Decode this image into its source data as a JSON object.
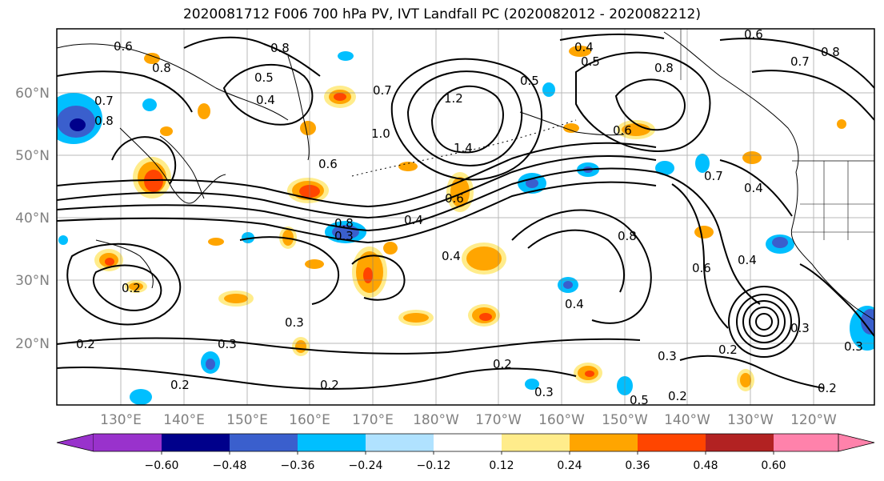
{
  "title": "2020081712 F006 700 hPa PV, IVT Landfall PC (2020082012 - 2020082212)",
  "map": {
    "lat_labels": [
      "60°N",
      "50°N",
      "40°N",
      "30°N",
      "20°N"
    ],
    "lon_labels": [
      "130°E",
      "140°E",
      "150°E",
      "160°E",
      "170°E",
      "180°W",
      "170°W",
      "160°W",
      "150°W",
      "140°W",
      "130°W",
      "120°W"
    ],
    "contour_labels": [
      "0.6",
      "0.8",
      "0.8",
      "0.7",
      "0.8",
      "0.5",
      "0.4",
      "0.7",
      "1.2",
      "1.0",
      "1.4",
      "0.4",
      "0.5",
      "0.8",
      "0.7",
      "0.8",
      "0.6",
      "0.6",
      "0.5",
      "0.6",
      "0.7",
      "0.4",
      "0.3",
      "0.8",
      "0.4",
      "0.6",
      "0.4",
      "0.8",
      "0.6",
      "0.4",
      "0.4",
      "0.3",
      "0.2",
      "0.3",
      "0.3",
      "0.2",
      "0.2",
      "0.2",
      "0.2",
      "0.3",
      "0.5",
      "0.2",
      "0.3",
      "0.2",
      "0.3",
      "0.2"
    ]
  },
  "colorbar": {
    "tick_labels": [
      "−0.60",
      "−0.48",
      "−0.36",
      "−0.24",
      "−0.12",
      "0.12",
      "0.24",
      "0.36",
      "0.48",
      "0.60"
    ],
    "colors": [
      "#9932CC",
      "#00008B",
      "#3A5FCD",
      "#00BFFF",
      "#B0E2FF",
      "#FFFFFF",
      "#FFEC8B",
      "#FFA500",
      "#FF4500",
      "#B22222",
      "#FF82AB"
    ]
  },
  "colors": {
    "contour": "#000000",
    "grid": "#808080",
    "coast": "#000000"
  }
}
